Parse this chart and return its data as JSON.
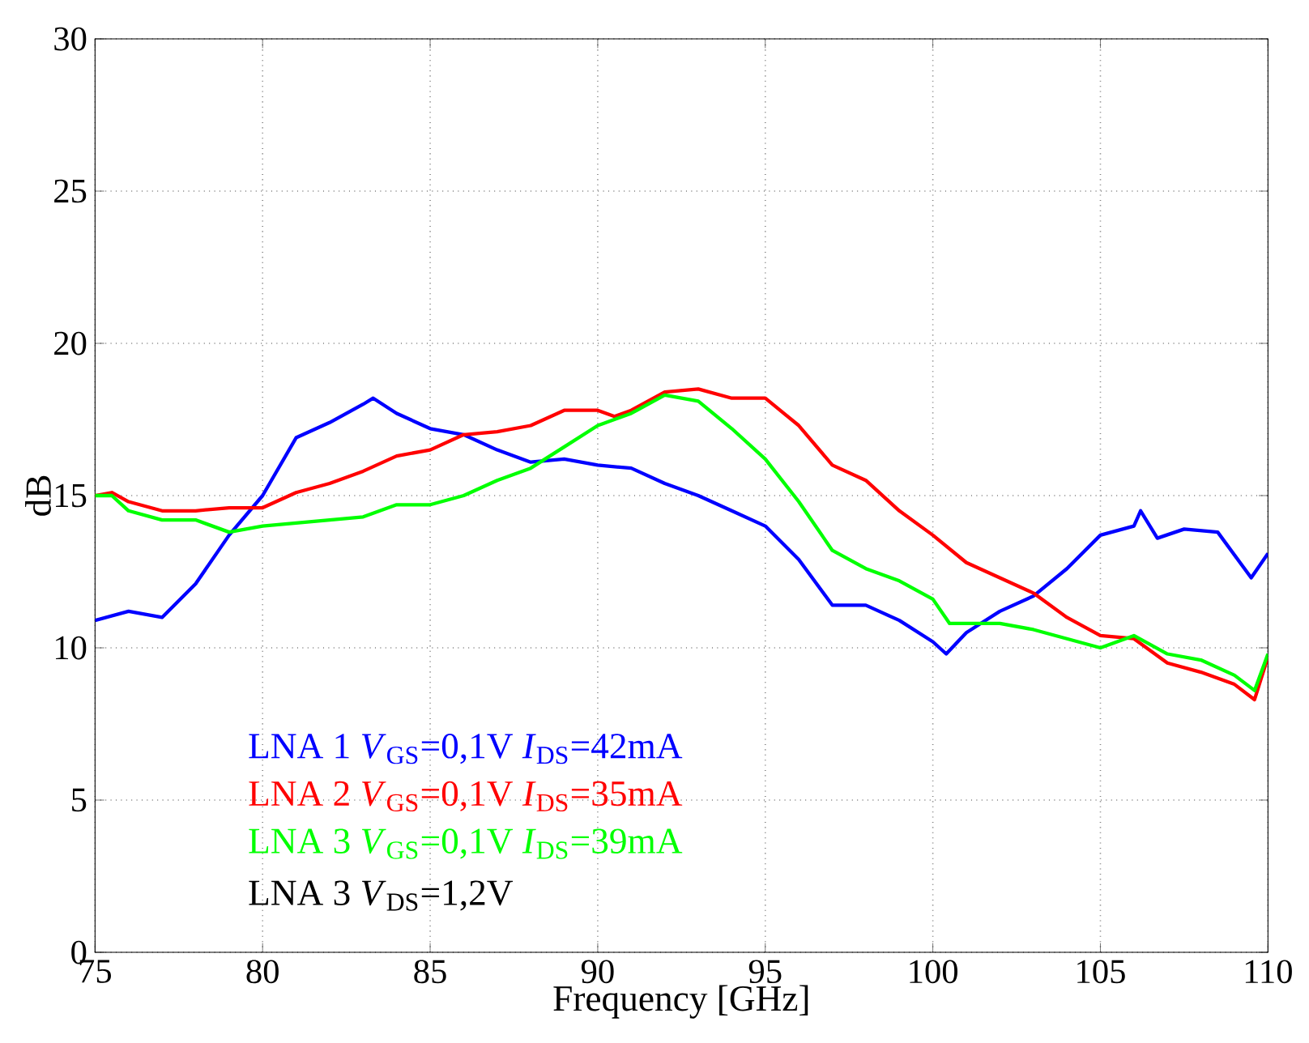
{
  "chart_data": {
    "type": "line",
    "xlabel": "Frequency [GHz]",
    "ylabel": "dB",
    "xlim": [
      75,
      110
    ],
    "ylim": [
      0,
      30
    ],
    "xticks": [
      75,
      80,
      85,
      90,
      95,
      100,
      105,
      110
    ],
    "yticks": [
      0,
      5,
      10,
      15,
      20,
      25,
      30
    ],
    "grid": true,
    "legend": "bottom left",
    "line_style": "solid",
    "marker": "none",
    "series": [
      {
        "name": "LNA 1 *V*$_{GS}$=0,1V *I*$_{DS}$=42mA",
        "color": "#0000ff",
        "x": [
          75,
          76,
          77,
          78,
          79,
          80,
          81,
          82,
          83,
          83.3,
          84,
          85,
          86,
          87,
          88,
          89,
          90,
          91,
          92,
          93,
          94,
          95,
          96,
          97,
          98,
          99,
          100,
          100.4,
          101,
          102,
          103,
          104,
          105,
          106,
          106.2,
          106.7,
          107.5,
          108.5,
          109.5,
          110
        ],
        "values": [
          10.9,
          11.2,
          11.0,
          12.1,
          13.7,
          15.0,
          16.9,
          17.4,
          18.0,
          18.2,
          17.7,
          17.2,
          17.0,
          16.5,
          16.1,
          16.2,
          16.0,
          15.9,
          15.4,
          15.0,
          14.5,
          14.0,
          12.9,
          11.4,
          11.4,
          10.9,
          10.2,
          9.8,
          10.5,
          11.2,
          11.7,
          12.6,
          13.7,
          14.0,
          14.5,
          13.6,
          13.9,
          13.8,
          12.3,
          13.1
        ]
      },
      {
        "name": "LNA 2 *V*$_{GS}$=0,1V *I*$_{DS}$=35mA",
        "color": "#ff0000",
        "x": [
          75,
          75.5,
          76,
          77,
          78,
          79,
          80,
          81,
          82,
          83,
          84,
          85,
          86,
          87,
          88,
          89,
          90,
          90.5,
          91,
          92,
          93,
          94,
          95,
          96,
          97,
          98,
          99,
          100,
          101,
          102,
          103,
          104,
          105,
          106,
          107,
          108,
          109,
          109.6,
          110
        ],
        "values": [
          15.0,
          15.1,
          14.8,
          14.5,
          14.5,
          14.6,
          14.6,
          15.1,
          15.4,
          15.8,
          16.3,
          16.5,
          17.0,
          17.1,
          17.3,
          17.8,
          17.8,
          17.6,
          17.8,
          18.4,
          18.5,
          18.2,
          18.2,
          17.3,
          16.0,
          15.5,
          14.5,
          13.7,
          12.8,
          12.3,
          11.8,
          11.0,
          10.4,
          10.3,
          9.5,
          9.2,
          8.8,
          8.3,
          9.7
        ]
      },
      {
        "name": "LNA 3 *V*$_{GS}$=0,1V *I*$_{DS}$=39mA",
        "color": "#00ff00",
        "x": [
          75,
          75.5,
          76,
          77,
          78,
          79,
          80,
          81,
          82,
          83,
          84,
          85,
          86,
          87,
          88,
          89,
          90,
          91,
          92,
          93,
          94,
          95,
          96,
          97,
          98,
          99,
          100,
          100.5,
          101,
          102,
          103,
          104,
          105,
          106,
          107,
          108,
          109,
          109.6,
          110
        ],
        "values": [
          15.0,
          15.0,
          14.5,
          14.2,
          14.2,
          13.8,
          14.0,
          14.1,
          14.2,
          14.3,
          14.7,
          14.7,
          15.0,
          15.5,
          15.9,
          16.6,
          17.3,
          17.7,
          18.3,
          18.1,
          17.2,
          16.2,
          14.8,
          13.2,
          12.6,
          12.2,
          11.6,
          10.8,
          10.8,
          10.8,
          10.6,
          10.3,
          10.0,
          10.4,
          9.8,
          9.6,
          9.1,
          8.6,
          9.8
        ]
      }
    ],
    "annotations": [
      "LNA 3 *V*$_{DS}$=1,2V"
    ]
  }
}
